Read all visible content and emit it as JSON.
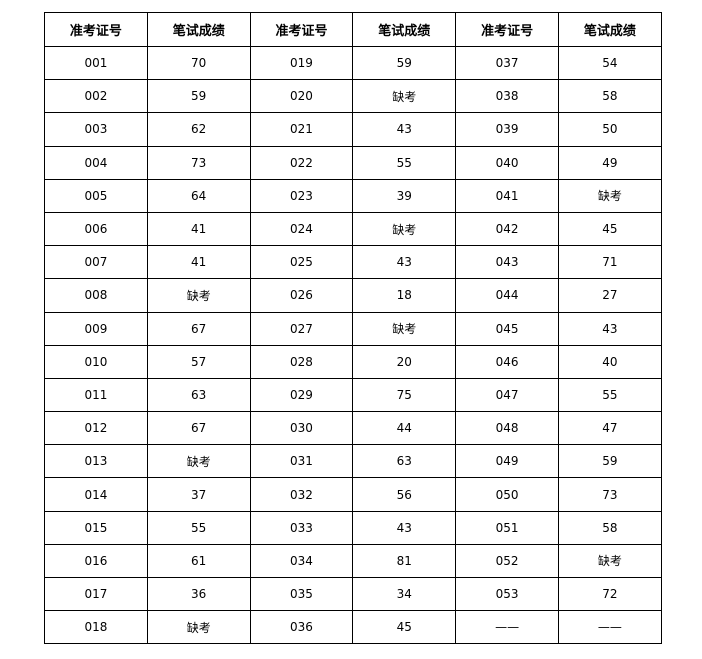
{
  "headers": [
    "准考证号",
    "笔试成绩",
    "准考证号",
    "笔试成绩",
    "准考证号",
    "笔试成绩"
  ],
  "rows": [
    [
      "001",
      "70",
      "019",
      "59",
      "037",
      "54"
    ],
    [
      "002",
      "59",
      "020",
      "缺考",
      "038",
      "58"
    ],
    [
      "003",
      "62",
      "021",
      "43",
      "039",
      "50"
    ],
    [
      "004",
      "73",
      "022",
      "55",
      "040",
      "49"
    ],
    [
      "005",
      "64",
      "023",
      "39",
      "041",
      "缺考"
    ],
    [
      "006",
      "41",
      "024",
      "缺考",
      "042",
      "45"
    ],
    [
      "007",
      "41",
      "025",
      "43",
      "043",
      "71"
    ],
    [
      "008",
      "缺考",
      "026",
      "18",
      "044",
      "27"
    ],
    [
      "009",
      "67",
      "027",
      "缺考",
      "045",
      "43"
    ],
    [
      "010",
      "57",
      "028",
      "20",
      "046",
      "40"
    ],
    [
      "011",
      "63",
      "029",
      "75",
      "047",
      "55"
    ],
    [
      "012",
      "67",
      "030",
      "44",
      "048",
      "47"
    ],
    [
      "013",
      "缺考",
      "031",
      "63",
      "049",
      "59"
    ],
    [
      "014",
      "37",
      "032",
      "56",
      "050",
      "73"
    ],
    [
      "015",
      "55",
      "033",
      "43",
      "051",
      "58"
    ],
    [
      "016",
      "61",
      "034",
      "81",
      "052",
      "缺考"
    ],
    [
      "017",
      "36",
      "035",
      "34",
      "053",
      "72"
    ],
    [
      "018",
      "缺考",
      "036",
      "45",
      "——",
      "——"
    ]
  ]
}
